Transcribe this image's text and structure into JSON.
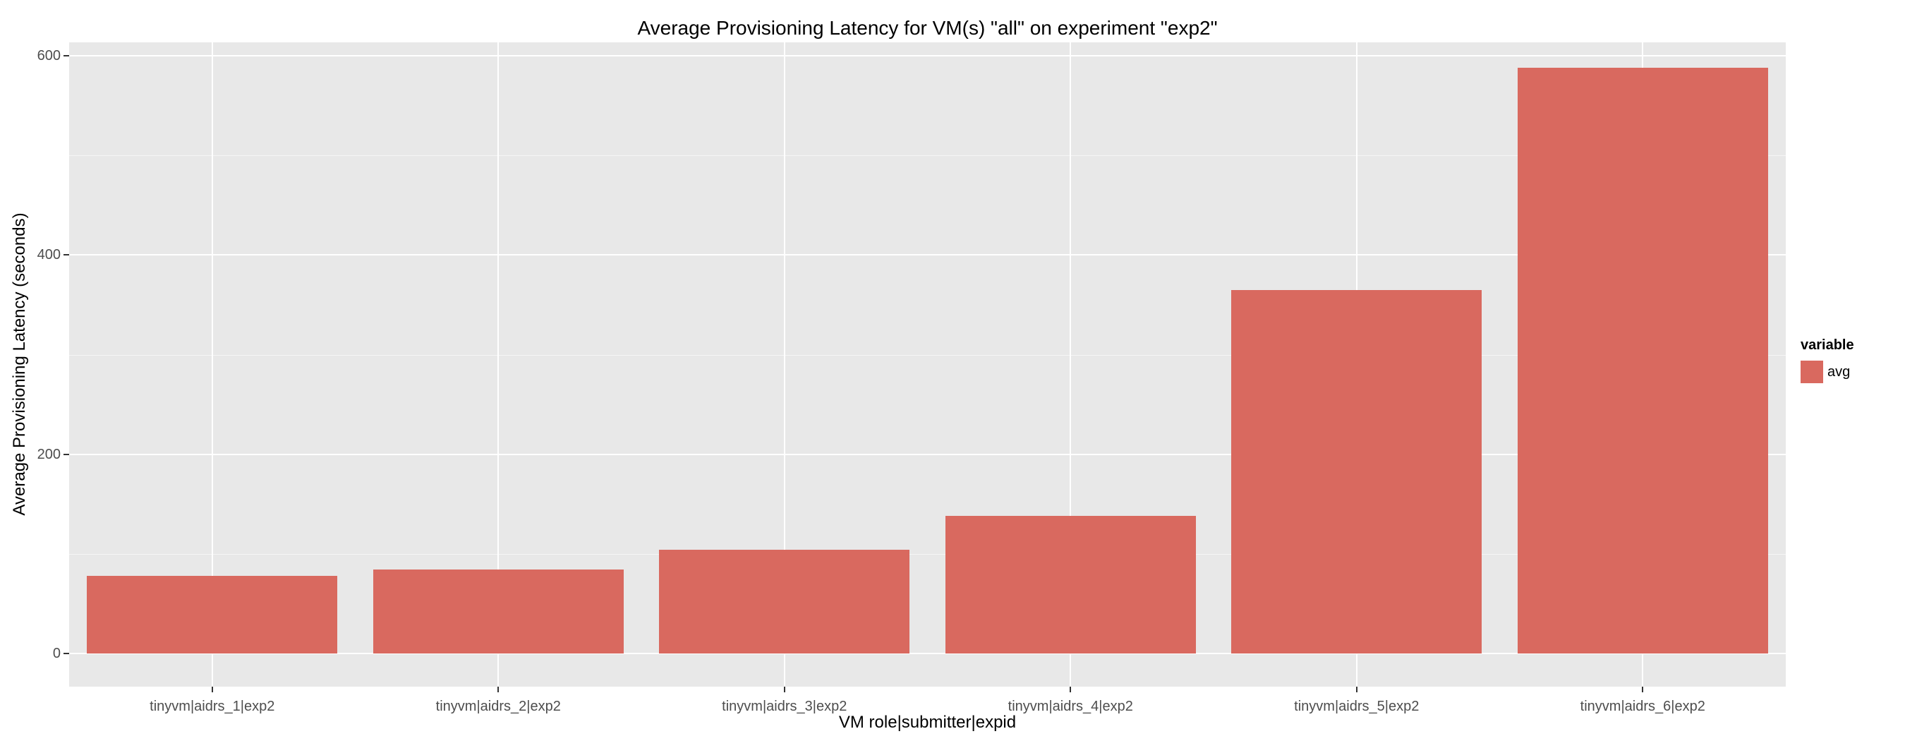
{
  "chart_data": {
    "type": "bar",
    "title": "Average Provisioning Latency for VM(s) \"all\" on experiment \"exp2\"",
    "xlabel": "VM role|submitter|expid",
    "ylabel": "Average Provisioning Latency (seconds)",
    "categories": [
      "tinyvm|aidrs_1|exp2",
      "tinyvm|aidrs_2|exp2",
      "tinyvm|aidrs_3|exp2",
      "tinyvm|aidrs_4|exp2",
      "tinyvm|aidrs_5|exp2",
      "tinyvm|aidrs_6|exp2"
    ],
    "series": [
      {
        "name": "avg",
        "values": [
          78,
          84,
          104,
          138,
          365,
          588
        ]
      }
    ],
    "ylim": [
      0,
      600
    ],
    "yticks": [
      0,
      200,
      400,
      600
    ],
    "grid": true,
    "legend": {
      "position": "right",
      "title": "variable",
      "entries": [
        {
          "label": "avg",
          "color": "#d9695f"
        }
      ]
    },
    "panel_bg": "#e8e8e8",
    "bar_color": "#d9695f"
  }
}
